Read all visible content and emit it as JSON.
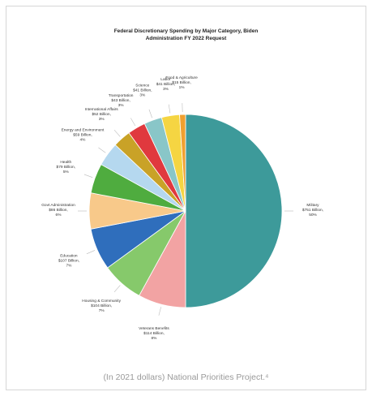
{
  "chart_data": {
    "type": "pie",
    "title_lines": [
      "Federal Discretionary Spending by Major Category, Biden",
      "Administration FY 2022 Request"
    ],
    "slices": [
      {
        "category": "Military",
        "value_text": "$751 Billion",
        "percent": 50,
        "color": "#3d9a9a"
      },
      {
        "category": "Veterans Benefits",
        "value_text": "$114 Billion",
        "percent": 8,
        "color": "#f2a3a3"
      },
      {
        "category": "Housing & Community",
        "value_text": "$104 Billion",
        "percent": 7,
        "color": "#86c96b"
      },
      {
        "category": "Education",
        "value_text": "$107 Billion",
        "percent": 7,
        "color": "#2f6ebc"
      },
      {
        "category": "Govt Administration",
        "value_text": "$86 Billion",
        "percent": 6,
        "color": "#f8c98a"
      },
      {
        "category": "Health",
        "value_text": "$79 Billion",
        "percent": 5,
        "color": "#4fac3f"
      },
      {
        "category": "Energy and Environment",
        "value_text": "$59 Billion",
        "percent": 4,
        "color": "#b5d8ef"
      },
      {
        "category": "International Affairs",
        "value_text": "$52 Billion",
        "percent": 3,
        "color": "#c9a227"
      },
      {
        "category": "Transportation",
        "value_text": "$43 Billion",
        "percent": 3,
        "color": "#e0393e"
      },
      {
        "category": "Science",
        "value_text": "$41 Billion",
        "percent": 3,
        "color": "#89c6c8"
      },
      {
        "category": "Labor",
        "value_text": "$41 Billion",
        "percent": 3,
        "color": "#f5d542"
      },
      {
        "category": "Food & Agriculture",
        "value_text": "$15 Billion",
        "percent": 1,
        "color": "#f0a030"
      }
    ],
    "grid": false,
    "legend": "none"
  },
  "caption": "(In 2021 dollars) National Priorities Project.⁴"
}
